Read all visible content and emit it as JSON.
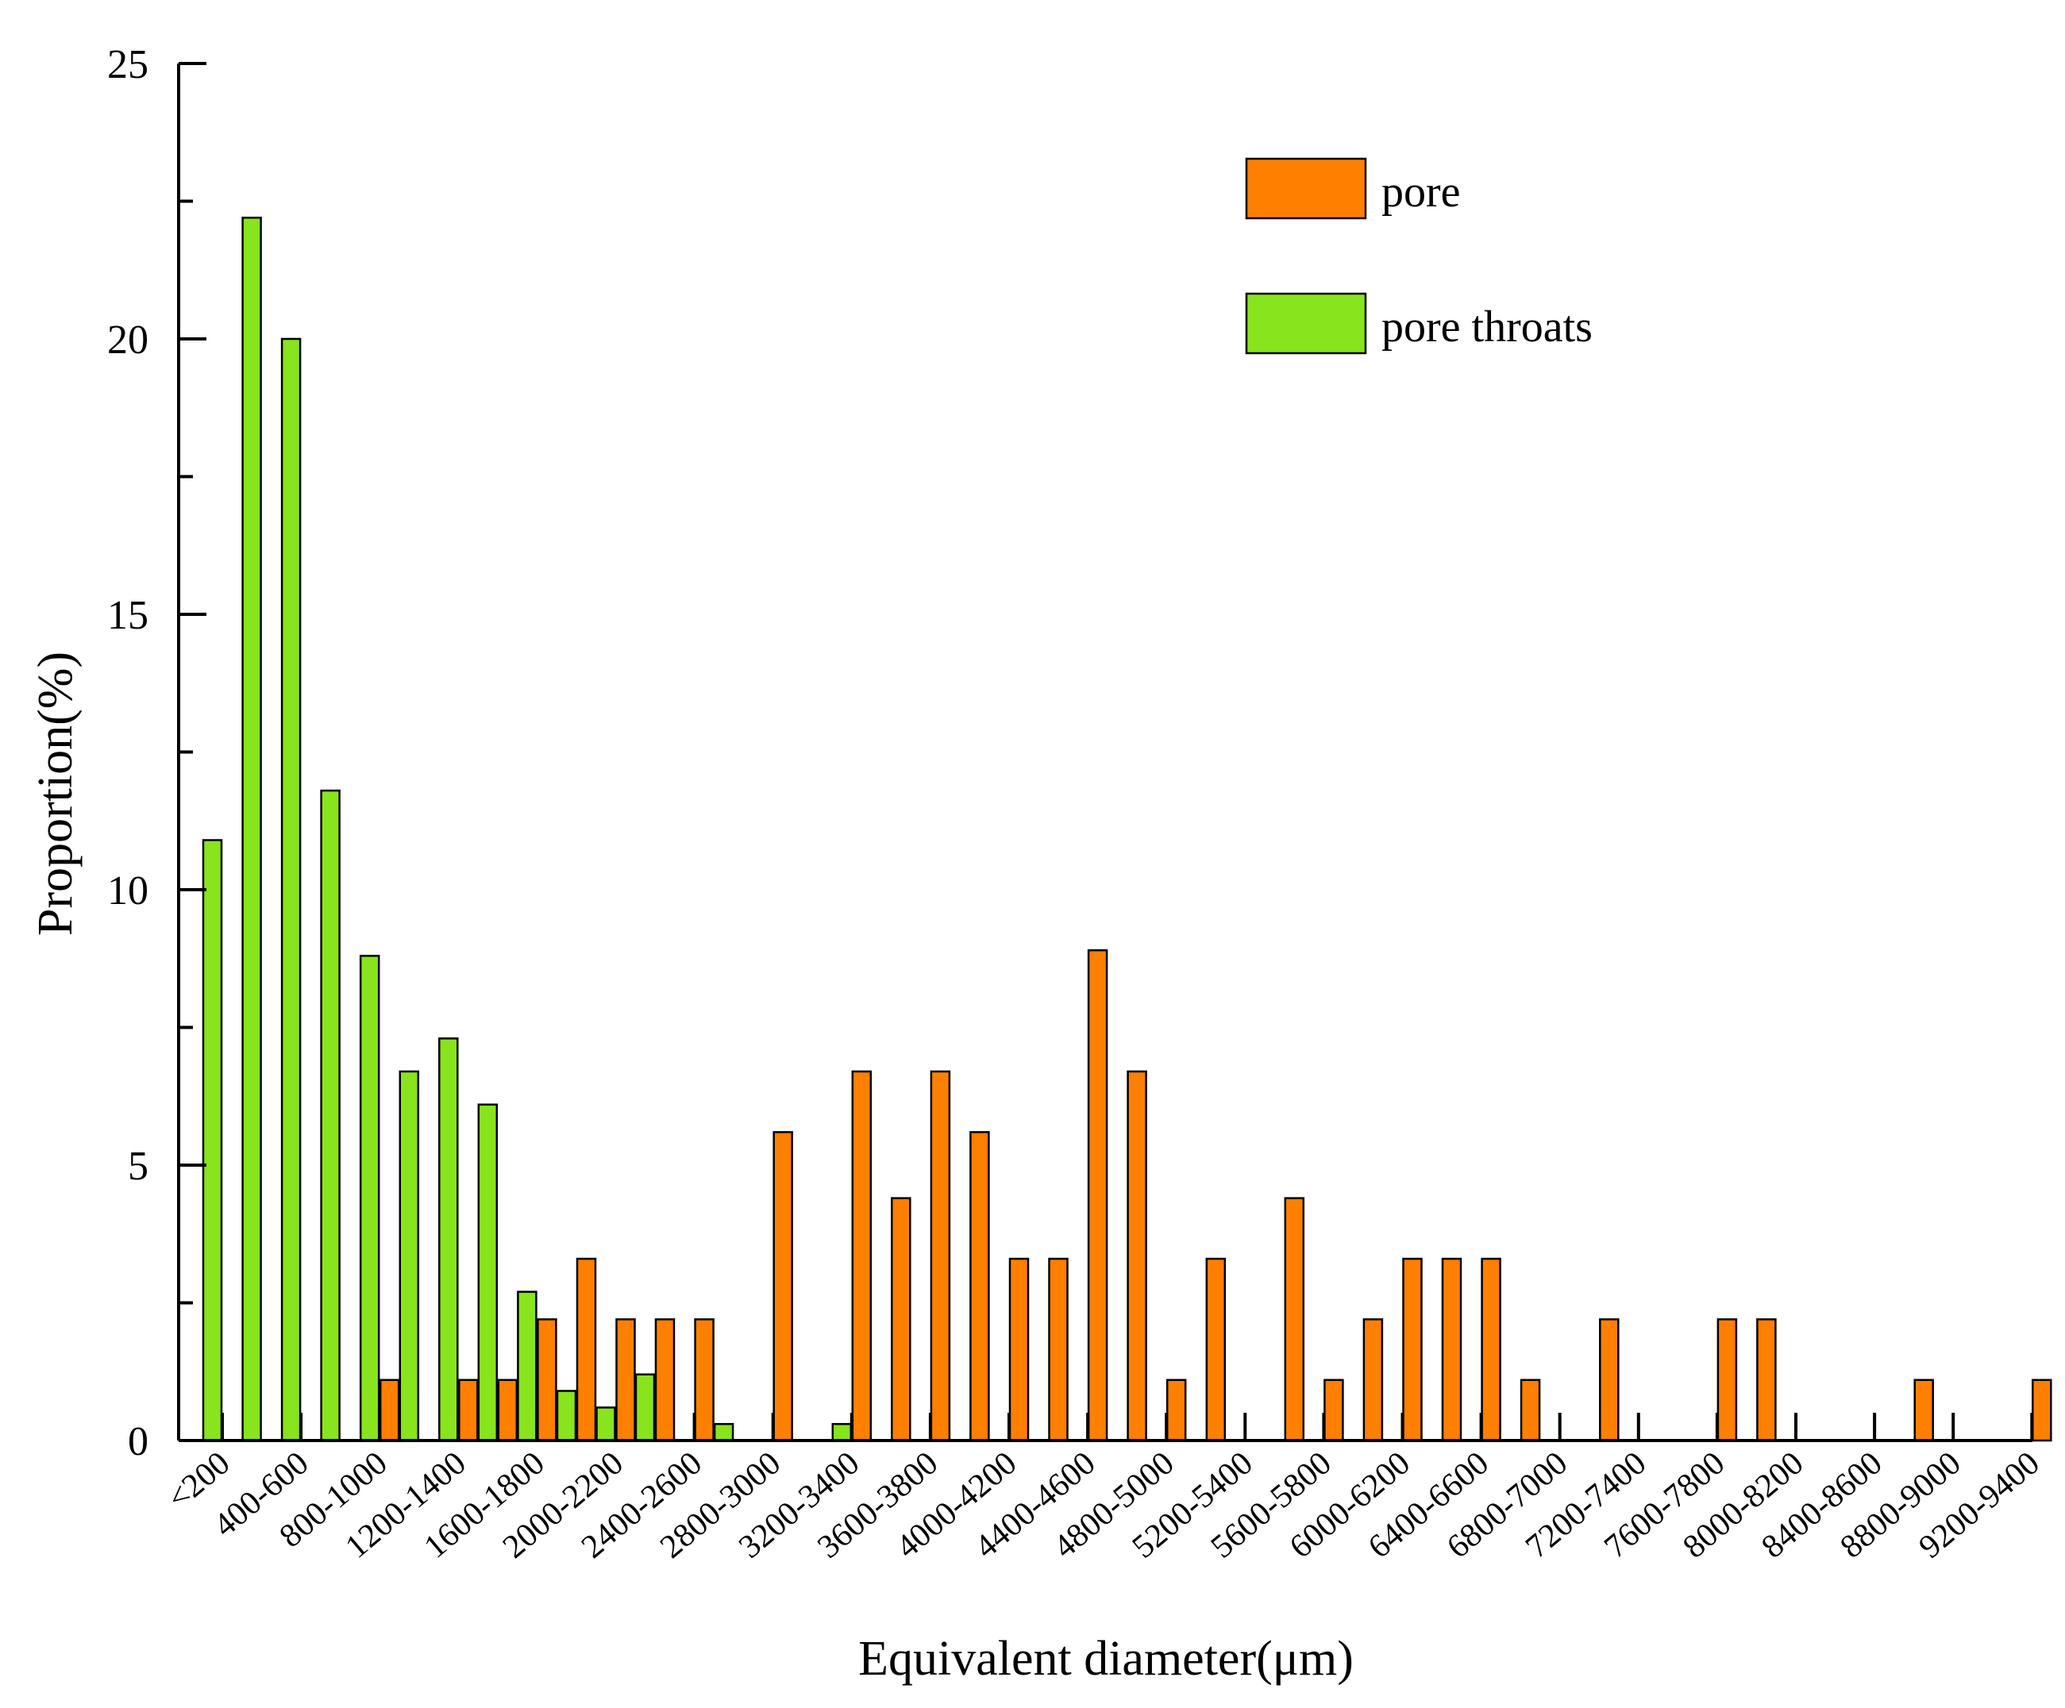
{
  "chart_data": {
    "type": "bar",
    "title": "",
    "xlabel": "Equivalent diameter(μm)",
    "ylabel": "Proportion(%)",
    "ylim": [
      0,
      25
    ],
    "yticks": [
      0,
      5,
      10,
      15,
      20,
      25
    ],
    "grid": false,
    "legend_position": "top-right",
    "categories": [
      "<200",
      "200-400",
      "400-600",
      "600-800",
      "800-1000",
      "1000-1200",
      "1200-1400",
      "1400-1600",
      "1600-1800",
      "1800-2000",
      "2000-2200",
      "2200-2400",
      "2400-2600",
      "2600-2800",
      "2800-3000",
      "3000-3200",
      "3200-3400",
      "3400-3600",
      "3600-3800",
      "3800-4000",
      "4000-4200",
      "4200-4400",
      "4400-4600",
      "4600-4800",
      "4800-5000",
      "5000-5200",
      "5200-5400",
      "5400-5600",
      "5600-5800",
      "5800-6000",
      "6000-6200",
      "6200-6400",
      "6400-6600",
      "6600-6800",
      "6800-7000",
      "7000-7200",
      "7200-7400",
      "7400-7600",
      "7600-7800",
      "7800-8000",
      "8000-8200",
      "8200-8400",
      "8400-8600",
      "8600-8800",
      "8800-9000",
      "9000-9200",
      "9200-9400"
    ],
    "labeled_categories": [
      "<200",
      "400-600",
      "800-1000",
      "1200-1400",
      "1600-1800",
      "2000-2200",
      "2400-2600",
      "2800-3000",
      "3200-3400",
      "3600-3800",
      "4000-4200",
      "4400-4600",
      "4800-5000",
      "5200-5400",
      "5600-5800",
      "6000-6200",
      "6400-6600",
      "6800-7000",
      "7200-7400",
      "7600-7800",
      "8000-8200",
      "8400-8600",
      "8800-9000",
      "9200-9400"
    ],
    "series": [
      {
        "name": "pore throats",
        "color": "#88e41c",
        "values": [
          10.9,
          22.2,
          20.0,
          11.8,
          8.8,
          6.7,
          7.3,
          6.1,
          2.7,
          0.9,
          0.6,
          1.2,
          0,
          0.3,
          0,
          0,
          0.3,
          0,
          0,
          0,
          0,
          0,
          0,
          0,
          0,
          0,
          0,
          0,
          0,
          0,
          0,
          0,
          0,
          0,
          0,
          0,
          0,
          0,
          0,
          0,
          0,
          0,
          0,
          0,
          0,
          0,
          0
        ]
      },
      {
        "name": "pore",
        "color": "#ff7f00",
        "values": [
          0,
          0,
          0,
          0,
          1.1,
          0,
          1.1,
          1.1,
          2.2,
          3.3,
          2.2,
          2.2,
          2.2,
          0,
          5.6,
          0,
          6.7,
          4.4,
          6.7,
          5.6,
          3.3,
          3.3,
          8.9,
          6.7,
          1.1,
          3.3,
          0,
          4.4,
          1.1,
          2.2,
          3.3,
          3.3,
          3.3,
          1.1,
          0,
          2.2,
          0,
          0,
          2.2,
          2.2,
          0,
          0,
          0,
          1.1,
          0,
          0,
          1.1
        ]
      }
    ],
    "legend": [
      {
        "label": "pore",
        "color": "#ff7f00"
      },
      {
        "label": "pore throats",
        "color": "#88e41c"
      }
    ]
  }
}
